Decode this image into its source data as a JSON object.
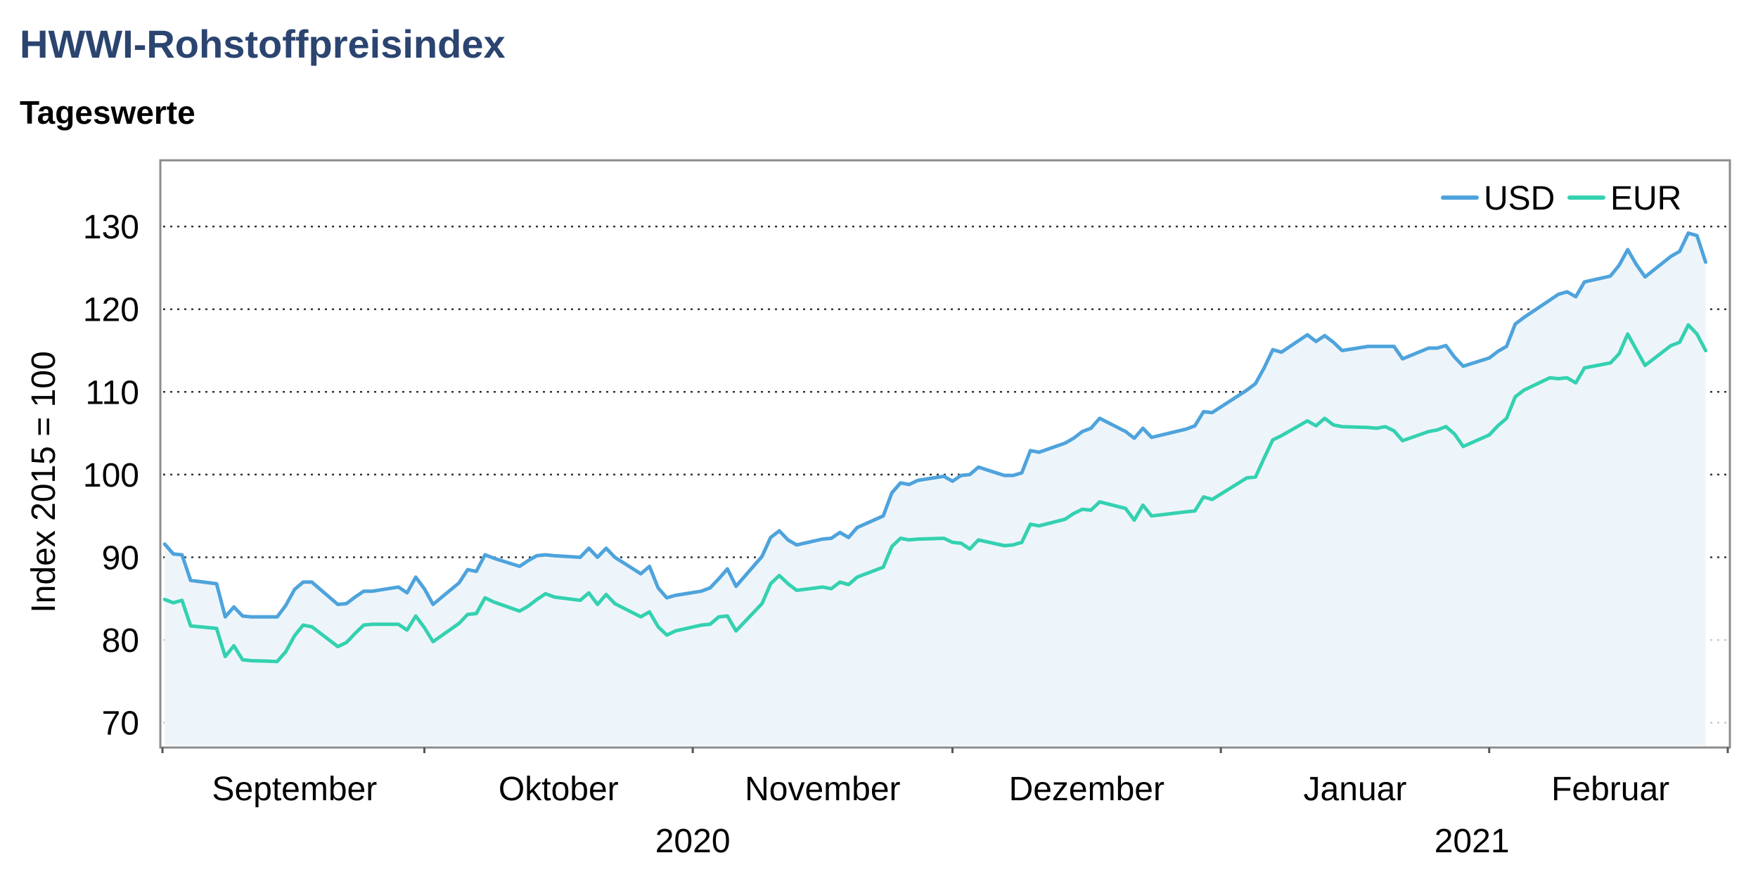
{
  "title": "HWWI-Rohstoffpreisindex",
  "subtitle": "Tageswerte",
  "colors": {
    "usd": "#4ea3dc",
    "eur": "#34d1b1",
    "area": "#eef5fa",
    "title": "#2b4470"
  },
  "chart_data": {
    "type": "line",
    "ylabel": "Index 2015 = 100",
    "ylim": [
      67,
      138
    ],
    "yticks": [
      70,
      80,
      90,
      100,
      110,
      120,
      130
    ],
    "grid": "horizontal dotted",
    "legend_position": "top-right",
    "month_labels": [
      "September",
      "Oktober",
      "November",
      "Dezember",
      "Januar",
      "Februar"
    ],
    "year_labels": [
      "2020",
      "2021"
    ],
    "x_start": "2020-09-01",
    "x_end": "2021-02-28",
    "series": [
      {
        "name": "USD",
        "points": [
          [
            "2020-09-01",
            91.6
          ],
          [
            "2020-09-02",
            90.4
          ],
          [
            "2020-09-03",
            90.3
          ],
          [
            "2020-09-04",
            87.2
          ],
          [
            "2020-09-07",
            86.8
          ],
          [
            "2020-09-08",
            82.8
          ],
          [
            "2020-09-09",
            84.0
          ],
          [
            "2020-09-10",
            82.9
          ],
          [
            "2020-09-11",
            82.8
          ],
          [
            "2020-09-14",
            82.8
          ],
          [
            "2020-09-15",
            84.2
          ],
          [
            "2020-09-16",
            86.1
          ],
          [
            "2020-09-17",
            87.0
          ],
          [
            "2020-09-18",
            87.0
          ],
          [
            "2020-09-21",
            84.3
          ],
          [
            "2020-09-22",
            84.4
          ],
          [
            "2020-09-23",
            85.2
          ],
          [
            "2020-09-24",
            85.9
          ],
          [
            "2020-09-25",
            85.9
          ],
          [
            "2020-09-28",
            86.4
          ],
          [
            "2020-09-29",
            85.7
          ],
          [
            "2020-09-30",
            87.6
          ],
          [
            "2020-10-01",
            86.2
          ],
          [
            "2020-10-02",
            84.3
          ],
          [
            "2020-10-05",
            86.9
          ],
          [
            "2020-10-06",
            88.5
          ],
          [
            "2020-10-07",
            88.3
          ],
          [
            "2020-10-08",
            90.3
          ],
          [
            "2020-10-09",
            89.9
          ],
          [
            "2020-10-12",
            88.9
          ],
          [
            "2020-10-13",
            89.6
          ],
          [
            "2020-10-14",
            90.2
          ],
          [
            "2020-10-15",
            90.3
          ],
          [
            "2020-10-16",
            90.2
          ],
          [
            "2020-10-19",
            90.0
          ],
          [
            "2020-10-20",
            91.1
          ],
          [
            "2020-10-21",
            90.0
          ],
          [
            "2020-10-22",
            91.1
          ],
          [
            "2020-10-23",
            90.0
          ],
          [
            "2020-10-26",
            88.0
          ],
          [
            "2020-10-27",
            88.9
          ],
          [
            "2020-10-28",
            86.3
          ],
          [
            "2020-10-29",
            85.1
          ],
          [
            "2020-10-30",
            85.4
          ],
          [
            "2020-11-02",
            85.9
          ],
          [
            "2020-11-03",
            86.3
          ],
          [
            "2020-11-04",
            87.4
          ],
          [
            "2020-11-05",
            88.6
          ],
          [
            "2020-11-06",
            86.5
          ],
          [
            "2020-11-09",
            90.1
          ],
          [
            "2020-11-10",
            92.4
          ],
          [
            "2020-11-11",
            93.2
          ],
          [
            "2020-11-12",
            92.1
          ],
          [
            "2020-11-13",
            91.5
          ],
          [
            "2020-11-16",
            92.2
          ],
          [
            "2020-11-17",
            92.3
          ],
          [
            "2020-11-18",
            93.0
          ],
          [
            "2020-11-19",
            92.4
          ],
          [
            "2020-11-20",
            93.6
          ],
          [
            "2020-11-23",
            95.0
          ],
          [
            "2020-11-24",
            97.8
          ],
          [
            "2020-11-25",
            99.0
          ],
          [
            "2020-11-26",
            98.8
          ],
          [
            "2020-11-27",
            99.3
          ],
          [
            "2020-11-30",
            99.8
          ],
          [
            "2020-12-01",
            99.2
          ],
          [
            "2020-12-02",
            99.9
          ],
          [
            "2020-12-03",
            100.0
          ],
          [
            "2020-12-04",
            100.9
          ],
          [
            "2020-12-07",
            99.9
          ],
          [
            "2020-12-08",
            99.9
          ],
          [
            "2020-12-09",
            100.2
          ],
          [
            "2020-12-10",
            102.9
          ],
          [
            "2020-12-11",
            102.7
          ],
          [
            "2020-12-14",
            103.8
          ],
          [
            "2020-12-15",
            104.4
          ],
          [
            "2020-12-16",
            105.2
          ],
          [
            "2020-12-17",
            105.6
          ],
          [
            "2020-12-18",
            106.8
          ],
          [
            "2020-12-21",
            105.2
          ],
          [
            "2020-12-22",
            104.4
          ],
          [
            "2020-12-23",
            105.6
          ],
          [
            "2020-12-24",
            104.5
          ],
          [
            "2020-12-28",
            105.5
          ],
          [
            "2020-12-29",
            105.9
          ],
          [
            "2020-12-30",
            107.6
          ],
          [
            "2020-12-31",
            107.5
          ],
          [
            "2021-01-04",
            110.2
          ],
          [
            "2021-01-05",
            111.0
          ],
          [
            "2021-01-06",
            112.9
          ],
          [
            "2021-01-07",
            115.1
          ],
          [
            "2021-01-08",
            114.8
          ],
          [
            "2021-01-11",
            116.9
          ],
          [
            "2021-01-12",
            116.1
          ],
          [
            "2021-01-13",
            116.8
          ],
          [
            "2021-01-14",
            116.0
          ],
          [
            "2021-01-15",
            115.0
          ],
          [
            "2021-01-18",
            115.5
          ],
          [
            "2021-01-19",
            115.5
          ],
          [
            "2021-01-20",
            115.5
          ],
          [
            "2021-01-21",
            115.5
          ],
          [
            "2021-01-22",
            114.0
          ],
          [
            "2021-01-25",
            115.3
          ],
          [
            "2021-01-26",
            115.3
          ],
          [
            "2021-01-27",
            115.6
          ],
          [
            "2021-01-28",
            114.2
          ],
          [
            "2021-01-29",
            113.1
          ],
          [
            "2021-02-01",
            114.1
          ],
          [
            "2021-02-02",
            114.9
          ],
          [
            "2021-02-03",
            115.5
          ],
          [
            "2021-02-04",
            118.2
          ],
          [
            "2021-02-05",
            119.0
          ],
          [
            "2021-02-08",
            121.1
          ],
          [
            "2021-02-09",
            121.8
          ],
          [
            "2021-02-10",
            122.1
          ],
          [
            "2021-02-11",
            121.5
          ],
          [
            "2021-02-12",
            123.3
          ],
          [
            "2021-02-15",
            124.0
          ],
          [
            "2021-02-16",
            125.3
          ],
          [
            "2021-02-17",
            127.2
          ],
          [
            "2021-02-18",
            125.4
          ],
          [
            "2021-02-19",
            123.9
          ],
          [
            "2021-02-22",
            126.4
          ],
          [
            "2021-02-23",
            127.0
          ],
          [
            "2021-02-24",
            129.2
          ],
          [
            "2021-02-25",
            128.9
          ],
          [
            "2021-02-26",
            125.7
          ]
        ]
      },
      {
        "name": "EUR",
        "points": [
          [
            "2020-09-01",
            84.9
          ],
          [
            "2020-09-02",
            84.5
          ],
          [
            "2020-09-03",
            84.8
          ],
          [
            "2020-09-04",
            81.7
          ],
          [
            "2020-09-07",
            81.4
          ],
          [
            "2020-09-08",
            78.0
          ],
          [
            "2020-09-09",
            79.3
          ],
          [
            "2020-09-10",
            77.6
          ],
          [
            "2020-09-11",
            77.5
          ],
          [
            "2020-09-14",
            77.4
          ],
          [
            "2020-09-15",
            78.6
          ],
          [
            "2020-09-16",
            80.5
          ],
          [
            "2020-09-17",
            81.8
          ],
          [
            "2020-09-18",
            81.6
          ],
          [
            "2020-09-21",
            79.2
          ],
          [
            "2020-09-22",
            79.7
          ],
          [
            "2020-09-23",
            80.8
          ],
          [
            "2020-09-24",
            81.8
          ],
          [
            "2020-09-25",
            81.9
          ],
          [
            "2020-09-28",
            81.9
          ],
          [
            "2020-09-29",
            81.2
          ],
          [
            "2020-09-30",
            82.9
          ],
          [
            "2020-10-01",
            81.5
          ],
          [
            "2020-10-02",
            79.8
          ],
          [
            "2020-10-05",
            82.0
          ],
          [
            "2020-10-06",
            83.1
          ],
          [
            "2020-10-07",
            83.2
          ],
          [
            "2020-10-08",
            85.1
          ],
          [
            "2020-10-09",
            84.6
          ],
          [
            "2020-10-12",
            83.5
          ],
          [
            "2020-10-13",
            84.1
          ],
          [
            "2020-10-14",
            84.9
          ],
          [
            "2020-10-15",
            85.6
          ],
          [
            "2020-10-16",
            85.2
          ],
          [
            "2020-10-19",
            84.8
          ],
          [
            "2020-10-20",
            85.7
          ],
          [
            "2020-10-21",
            84.3
          ],
          [
            "2020-10-22",
            85.5
          ],
          [
            "2020-10-23",
            84.4
          ],
          [
            "2020-10-26",
            82.8
          ],
          [
            "2020-10-27",
            83.4
          ],
          [
            "2020-10-28",
            81.6
          ],
          [
            "2020-10-29",
            80.6
          ],
          [
            "2020-10-30",
            81.1
          ],
          [
            "2020-11-02",
            81.8
          ],
          [
            "2020-11-03",
            81.9
          ],
          [
            "2020-11-04",
            82.8
          ],
          [
            "2020-11-05",
            82.9
          ],
          [
            "2020-11-06",
            81.1
          ],
          [
            "2020-11-09",
            84.4
          ],
          [
            "2020-11-10",
            86.8
          ],
          [
            "2020-11-11",
            87.8
          ],
          [
            "2020-11-12",
            86.8
          ],
          [
            "2020-11-13",
            86.0
          ],
          [
            "2020-11-16",
            86.4
          ],
          [
            "2020-11-17",
            86.2
          ],
          [
            "2020-11-18",
            87.0
          ],
          [
            "2020-11-19",
            86.7
          ],
          [
            "2020-11-20",
            87.6
          ],
          [
            "2020-11-23",
            88.8
          ],
          [
            "2020-11-24",
            91.3
          ],
          [
            "2020-11-25",
            92.3
          ],
          [
            "2020-11-26",
            92.1
          ],
          [
            "2020-11-27",
            92.2
          ],
          [
            "2020-11-30",
            92.3
          ],
          [
            "2020-12-01",
            91.8
          ],
          [
            "2020-12-02",
            91.7
          ],
          [
            "2020-12-03",
            91.0
          ],
          [
            "2020-12-04",
            92.1
          ],
          [
            "2020-12-07",
            91.4
          ],
          [
            "2020-12-08",
            91.5
          ],
          [
            "2020-12-09",
            91.8
          ],
          [
            "2020-12-10",
            94.0
          ],
          [
            "2020-12-11",
            93.8
          ],
          [
            "2020-12-14",
            94.6
          ],
          [
            "2020-12-15",
            95.3
          ],
          [
            "2020-12-16",
            95.8
          ],
          [
            "2020-12-17",
            95.7
          ],
          [
            "2020-12-18",
            96.7
          ],
          [
            "2020-12-21",
            95.9
          ],
          [
            "2020-12-22",
            94.5
          ],
          [
            "2020-12-23",
            96.3
          ],
          [
            "2020-12-24",
            95.0
          ],
          [
            "2020-12-28",
            95.5
          ],
          [
            "2020-12-29",
            95.6
          ],
          [
            "2020-12-30",
            97.3
          ],
          [
            "2020-12-31",
            97.0
          ],
          [
            "2021-01-04",
            99.6
          ],
          [
            "2021-01-05",
            99.7
          ],
          [
            "2021-01-06",
            102.0
          ],
          [
            "2021-01-07",
            104.2
          ],
          [
            "2021-01-08",
            104.7
          ],
          [
            "2021-01-11",
            106.5
          ],
          [
            "2021-01-12",
            105.9
          ],
          [
            "2021-01-13",
            106.8
          ],
          [
            "2021-01-14",
            106.0
          ],
          [
            "2021-01-15",
            105.8
          ],
          [
            "2021-01-18",
            105.7
          ],
          [
            "2021-01-19",
            105.6
          ],
          [
            "2021-01-20",
            105.8
          ],
          [
            "2021-01-21",
            105.3
          ],
          [
            "2021-01-22",
            104.1
          ],
          [
            "2021-01-25",
            105.2
          ],
          [
            "2021-01-26",
            105.4
          ],
          [
            "2021-01-27",
            105.8
          ],
          [
            "2021-01-28",
            104.9
          ],
          [
            "2021-01-29",
            103.4
          ],
          [
            "2021-02-01",
            104.8
          ],
          [
            "2021-02-02",
            105.9
          ],
          [
            "2021-02-03",
            106.8
          ],
          [
            "2021-02-04",
            109.4
          ],
          [
            "2021-02-05",
            110.2
          ],
          [
            "2021-02-08",
            111.7
          ],
          [
            "2021-02-09",
            111.6
          ],
          [
            "2021-02-10",
            111.7
          ],
          [
            "2021-02-11",
            111.1
          ],
          [
            "2021-02-12",
            112.9
          ],
          [
            "2021-02-15",
            113.5
          ],
          [
            "2021-02-16",
            114.6
          ],
          [
            "2021-02-17",
            117.0
          ],
          [
            "2021-02-18",
            115.1
          ],
          [
            "2021-02-19",
            113.2
          ],
          [
            "2021-02-22",
            115.6
          ],
          [
            "2021-02-23",
            116.0
          ],
          [
            "2021-02-24",
            118.1
          ],
          [
            "2021-02-25",
            117.0
          ],
          [
            "2021-02-26",
            115.0
          ]
        ]
      }
    ]
  }
}
